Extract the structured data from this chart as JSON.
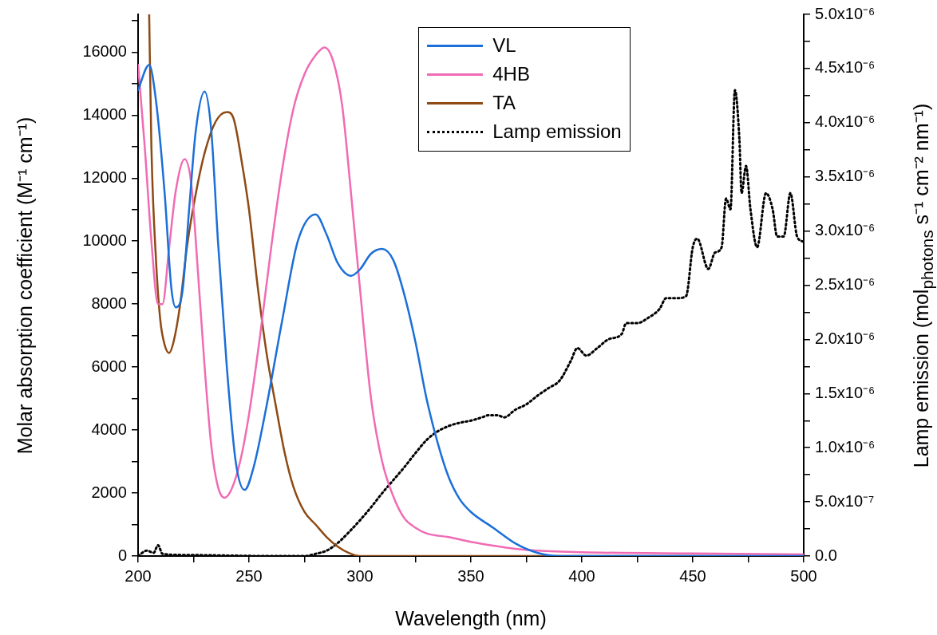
{
  "chart_data": {
    "type": "line",
    "xlabel": "Wavelength (nm)",
    "ylabel": "Molar absorption coefficient (M⁻¹ cm⁻¹)",
    "y2label": "Lamp emission (mol$_{photons}$ s⁻¹ cm⁻² nm⁻¹)",
    "xlim": [
      200,
      500
    ],
    "xticks": [
      200,
      {
        "value": 225,
        "label": null
      },
      250,
      {
        "value": 275,
        "label": null
      },
      300,
      {
        "value": 325,
        "label": null
      },
      350,
      {
        "value": 375,
        "label": null
      },
      400,
      {
        "value": 425,
        "label": null
      },
      450,
      {
        "value": 475,
        "label": null
      },
      500
    ],
    "ylim": [
      0,
      17200
    ],
    "yticks": [
      0,
      {
        "value": 1000,
        "label": null
      },
      2000,
      {
        "value": 3000,
        "label": null
      },
      4000,
      {
        "value": 5000,
        "label": null
      },
      6000,
      {
        "value": 7000,
        "label": null
      },
      8000,
      {
        "value": 9000,
        "label": null
      },
      10000,
      {
        "value": 11000,
        "label": null
      },
      12000,
      {
        "value": 13000,
        "label": null
      },
      14000,
      {
        "value": 15000,
        "label": null
      },
      16000,
      {
        "value": 17000,
        "label": null
      }
    ],
    "y2lim": [
      0,
      5e-06
    ],
    "y2ticks": [
      {
        "value": 0,
        "label": "0.0"
      },
      {
        "value": 2.5e-07,
        "label": null
      },
      {
        "value": 5e-07,
        "label": "5.0x10⁻⁷"
      },
      {
        "value": 7.5e-07,
        "label": null
      },
      {
        "value": 1e-06,
        "label": "1.0x10⁻⁶"
      },
      {
        "value": 1.25e-06,
        "label": null
      },
      {
        "value": 1.5e-06,
        "label": "1.5x10⁻⁶"
      },
      {
        "value": 1.75e-06,
        "label": null
      },
      {
        "value": 2e-06,
        "label": "2.0x10⁻⁶"
      },
      {
        "value": 2.25e-06,
        "label": null
      },
      {
        "value": 2.5e-06,
        "label": "2.5x10⁻⁶"
      },
      {
        "value": 2.75e-06,
        "label": null
      },
      {
        "value": 3e-06,
        "label": "3.0x10⁻⁶"
      },
      {
        "value": 3.25e-06,
        "label": null
      },
      {
        "value": 3.5e-06,
        "label": "3.5x10⁻⁶"
      },
      {
        "value": 3.75e-06,
        "label": null
      },
      {
        "value": 4e-06,
        "label": "4.0x10⁻⁶"
      },
      {
        "value": 4.25e-06,
        "label": null
      },
      {
        "value": 4.5e-06,
        "label": "4.5x10⁻⁶"
      },
      {
        "value": 4.75e-06,
        "label": null
      },
      {
        "value": 5e-06,
        "label": "5.0x10⁻⁶"
      }
    ],
    "grid": false,
    "legend": "top",
    "marker": "none",
    "series": [
      {
        "name": "VL",
        "color": "#1a6fd8",
        "line_style": "solid",
        "x": [
          200,
          205,
          208,
          212,
          215,
          217,
          220,
          223,
          226,
          230,
          233,
          236,
          240,
          244,
          248,
          252,
          258,
          265,
          272,
          280,
          285,
          290,
          296,
          300,
          305,
          310,
          315,
          320,
          325,
          330,
          335,
          340,
          345,
          350,
          360,
          370,
          380,
          390,
          400,
          500
        ],
        "values": [
          14800,
          15600,
          14500,
          11500,
          8500,
          7900,
          8400,
          11000,
          13500,
          14750,
          13500,
          10000,
          6000,
          3000,
          2100,
          2800,
          4800,
          7500,
          10000,
          10850,
          10200,
          9300,
          8900,
          9100,
          9600,
          9750,
          9400,
          8300,
          6800,
          5000,
          3600,
          2500,
          1800,
          1400,
          900,
          400,
          100,
          0,
          0,
          0
        ]
      },
      {
        "name": "4HB",
        "color": "#f06bb4",
        "line_style": "solid",
        "x": [
          200,
          203,
          206,
          209,
          211,
          214,
          217,
          221,
          224,
          227,
          230,
          233,
          236,
          239,
          242,
          246,
          250,
          255,
          260,
          265,
          270,
          275,
          280,
          284,
          288,
          292,
          296,
          300,
          305,
          310,
          315,
          320,
          325,
          330,
          340,
          350,
          360,
          370,
          380,
          400,
          450,
          500
        ],
        "values": [
          15600,
          13000,
          10000,
          8000,
          8000,
          9800,
          11600,
          12600,
          11800,
          9000,
          6000,
          3500,
          2200,
          1850,
          2100,
          3000,
          4500,
          7000,
          9800,
          12300,
          14200,
          15300,
          15900,
          16150,
          15700,
          14300,
          11500,
          8500,
          5000,
          3000,
          1900,
          1200,
          900,
          720,
          600,
          450,
          330,
          230,
          170,
          120,
          80,
          50
        ]
      },
      {
        "name": "TA",
        "color": "#8e4a14",
        "line_style": "solid",
        "x": [
          205,
          206,
          208,
          210,
          212,
          214,
          216,
          219,
          222,
          226,
          230,
          235,
          240,
          243,
          247,
          250,
          254,
          258,
          262,
          266,
          270,
          275,
          280,
          285,
          290,
          295,
          300,
          350,
          500
        ],
        "values": [
          17200,
          13000,
          9500,
          7500,
          6700,
          6450,
          6800,
          8000,
          9800,
          11500,
          12800,
          13800,
          14100,
          13900,
          12400,
          11000,
          8500,
          6400,
          4800,
          3300,
          2200,
          1400,
          1000,
          600,
          300,
          100,
          0,
          0,
          0
        ]
      },
      {
        "name": "Lamp emission",
        "color": "#000000",
        "line_style": "dotted",
        "axis": "y2",
        "x": [
          200,
          204,
          207,
          209,
          211,
          220,
          260,
          275,
          280,
          285,
          290,
          295,
          300,
          305,
          310,
          315,
          320,
          325,
          330,
          335,
          340,
          345,
          350,
          355,
          358,
          362,
          365,
          370,
          375,
          380,
          385,
          390,
          395,
          398,
          402,
          407,
          412,
          418,
          420,
          425,
          430,
          435,
          438,
          443,
          447,
          450,
          452,
          457,
          460,
          463,
          465,
          467,
          469,
          471,
          472,
          474,
          476,
          479,
          483,
          486,
          488,
          491,
          494,
          497,
          500
        ],
        "values": [
          0,
          5e-08,
          3e-08,
          1e-07,
          2e-08,
          1e-08,
          0,
          0,
          2e-08,
          5e-08,
          1.2e-07,
          2.2e-07,
          3.3e-07,
          4.5e-07,
          5.8e-07,
          7e-07,
          8.2e-07,
          9.5e-07,
          1.07e-06,
          1.15e-06,
          1.2e-06,
          1.23e-06,
          1.25e-06,
          1.28e-06,
          1.3e-06,
          1.3e-06,
          1.28e-06,
          1.35e-06,
          1.4e-06,
          1.48e-06,
          1.55e-06,
          1.62e-06,
          1.8e-06,
          1.92e-06,
          1.85e-06,
          1.92e-06,
          2e-06,
          2.05e-06,
          2.15e-06,
          2.15e-06,
          2.2e-06,
          2.28e-06,
          2.38e-06,
          2.38e-06,
          2.4e-06,
          2.85e-06,
          2.93e-06,
          2.65e-06,
          2.8e-06,
          2.85e-06,
          3.3e-06,
          3.2e-06,
          4.3e-06,
          3.85e-06,
          3.35e-06,
          3.6e-06,
          3.2e-06,
          2.85e-06,
          3.35e-06,
          3.2e-06,
          2.95e-06,
          2.95e-06,
          3.35e-06,
          2.95e-06,
          2.9e-06
        ]
      }
    ]
  }
}
